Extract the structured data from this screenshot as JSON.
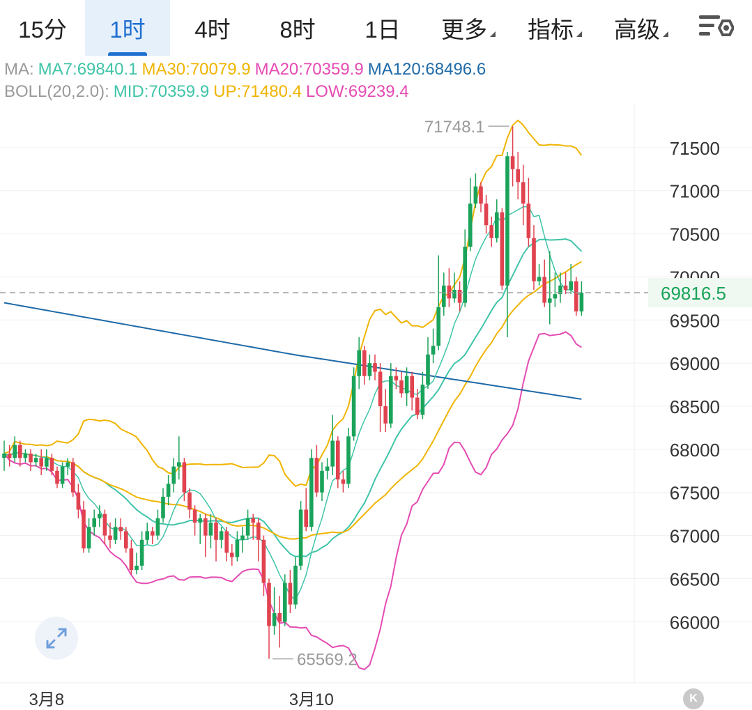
{
  "tabs": [
    {
      "label": "15分"
    },
    {
      "label": "1时",
      "active": true
    },
    {
      "label": "4时"
    },
    {
      "label": "8时"
    },
    {
      "label": "1日"
    },
    {
      "label": "更多",
      "caret": true
    },
    {
      "label": "指标",
      "caret": true
    },
    {
      "label": "高级",
      "caret": true
    }
  ],
  "settings_icon": "chart-settings-icon",
  "legend": {
    "ma_prefix": "MA:",
    "ma7": "MA7:69840.1",
    "ma30": "MA30:70079.9",
    "ma20": "MA20:70359.9",
    "ma120": "MA120:68496.6",
    "boll_prefix": "BOLL(20,2.0):",
    "mid": "MID:70359.9",
    "up": "UP:71480.4",
    "low": "LOW:69239.4"
  },
  "colors": {
    "up_candle": "#1aa35a",
    "down_candle": "#e0434f",
    "ma7": "#3fc4a8",
    "ma30": "#f0b400",
    "ma20": "#e54bb3",
    "ma120": "#1f6aa8",
    "boll_mid": "#3fc4a8",
    "boll_up": "#f0b400",
    "boll_low": "#e54bb3",
    "accent": "#1f6fd1",
    "price_tag": "#1aa35a"
  },
  "current_price": "69816.5",
  "high_label": "71748.1",
  "low_label": "65569.2",
  "chart_data": {
    "type": "candlestick",
    "y_ticks": [
      71500,
      71000,
      70500,
      70000,
      69500,
      69000,
      68500,
      68000,
      67500,
      67000,
      66500,
      66000
    ],
    "y_tick_labels": [
      "71500",
      "71000",
      "70500",
      "70000",
      "69500",
      "69000",
      "68500",
      "68000",
      "67500",
      "67000",
      "66500",
      "66000"
    ],
    "ylim": [
      65380,
      72000
    ],
    "x_labels": [
      {
        "text": "3月8",
        "index": 8
      },
      {
        "text": "3月10",
        "index": 58
      }
    ],
    "candles": [
      [
        67900,
        67950,
        67750,
        68100
      ],
      [
        67950,
        67900,
        67800,
        68050
      ],
      [
        67900,
        68050,
        67850,
        68150
      ],
      [
        68050,
        67900,
        67800,
        68100
      ],
      [
        67900,
        67950,
        67850,
        68000
      ],
      [
        67950,
        67850,
        67750,
        68000
      ],
      [
        67850,
        67900,
        67800,
        67950
      ],
      [
        67900,
        67800,
        67700,
        68000
      ],
      [
        67800,
        67900,
        67750,
        68000
      ],
      [
        67900,
        67750,
        67700,
        67950
      ],
      [
        67750,
        67600,
        67550,
        67800
      ],
      [
        67600,
        67800,
        67550,
        67850
      ],
      [
        67800,
        67850,
        67700,
        67900
      ],
      [
        67850,
        67500,
        67450,
        67900
      ],
      [
        67500,
        67300,
        67200,
        67600
      ],
      [
        67300,
        66850,
        66800,
        67400
      ],
      [
        66850,
        67100,
        66800,
        67200
      ],
      [
        67100,
        67200,
        67000,
        67300
      ],
      [
        67200,
        67250,
        67100,
        67350
      ],
      [
        67250,
        67000,
        66900,
        67300
      ],
      [
        67000,
        66950,
        66850,
        67150
      ],
      [
        66950,
        67100,
        66900,
        67200
      ],
      [
        67100,
        67050,
        66950,
        67200
      ],
      [
        67050,
        66850,
        66800,
        67100
      ],
      [
        66850,
        66600,
        66550,
        66950
      ],
      [
        66600,
        66650,
        66550,
        66800
      ],
      [
        66650,
        66950,
        66600,
        67050
      ],
      [
        66950,
        67050,
        66900,
        67150
      ],
      [
        67050,
        67000,
        66900,
        67100
      ],
      [
        67000,
        67200,
        66950,
        67300
      ],
      [
        67200,
        67450,
        67150,
        67550
      ],
      [
        67450,
        67600,
        67350,
        67700
      ],
      [
        67600,
        67800,
        67500,
        67900
      ],
      [
        67800,
        67850,
        67650,
        68150
      ],
      [
        67850,
        67500,
        67400,
        67900
      ],
      [
        67500,
        67300,
        67200,
        67550
      ],
      [
        67300,
        67150,
        67000,
        67350
      ],
      [
        67150,
        67200,
        66900,
        67250
      ],
      [
        67200,
        67000,
        66750,
        67250
      ],
      [
        67000,
        67150,
        66850,
        67250
      ],
      [
        67150,
        66950,
        66700,
        67200
      ],
      [
        66950,
        67050,
        66850,
        67100
      ],
      [
        67050,
        66800,
        66700,
        67100
      ],
      [
        66800,
        66750,
        66650,
        66900
      ],
      [
        66750,
        66950,
        66700,
        67050
      ],
      [
        66950,
        67000,
        66800,
        67100
      ],
      [
        67000,
        67200,
        66950,
        67300
      ],
      [
        67200,
        67150,
        66950,
        67250
      ],
      [
        67150,
        66950,
        66700,
        67200
      ],
      [
        66950,
        66450,
        66300,
        67000
      ],
      [
        66450,
        65950,
        65569.2,
        66500
      ],
      [
        65950,
        66100,
        65850,
        66400
      ],
      [
        66100,
        66000,
        65700,
        66300
      ],
      [
        66000,
        66450,
        65950,
        66550
      ],
      [
        66450,
        66200,
        66100,
        66600
      ],
      [
        66200,
        66650,
        66150,
        66750
      ],
      [
        66650,
        67300,
        66600,
        67400
      ],
      [
        67300,
        67100,
        67050,
        67550
      ],
      [
        67100,
        67900,
        67050,
        68000
      ],
      [
        67900,
        67500,
        67450,
        68050
      ],
      [
        67500,
        67750,
        67400,
        67850
      ],
      [
        67750,
        67800,
        67650,
        67900
      ],
      [
        67800,
        68100,
        67700,
        68400
      ],
      [
        68100,
        67650,
        67550,
        68150
      ],
      [
        67650,
        67600,
        67500,
        67750
      ],
      [
        67600,
        68150,
        67550,
        68250
      ],
      [
        68150,
        68850,
        68100,
        68950
      ],
      [
        68850,
        69150,
        68700,
        69300
      ],
      [
        69150,
        68850,
        68750,
        69200
      ],
      [
        68850,
        69000,
        68800,
        69100
      ],
      [
        69000,
        68900,
        68800,
        69100
      ],
      [
        68900,
        68500,
        68200,
        69000
      ],
      [
        68500,
        68300,
        68200,
        68700
      ],
      [
        68300,
        68850,
        68250,
        69000
      ],
      [
        68850,
        68800,
        68700,
        68950
      ],
      [
        68800,
        68650,
        68600,
        68900
      ],
      [
        68650,
        68850,
        68500,
        68950
      ],
      [
        68850,
        68600,
        68450,
        68900
      ],
      [
        68600,
        68400,
        68350,
        68700
      ],
      [
        68400,
        68750,
        68350,
        68900
      ],
      [
        68750,
        69100,
        68700,
        69300
      ],
      [
        69100,
        69200,
        69000,
        69400
      ],
      [
        69200,
        69650,
        69150,
        70250
      ],
      [
        69650,
        69900,
        69550,
        70050
      ],
      [
        69900,
        69750,
        69650,
        70100
      ],
      [
        69750,
        69850,
        69700,
        70050
      ],
      [
        69850,
        69700,
        69600,
        69950
      ],
      [
        69700,
        70350,
        69650,
        70550
      ],
      [
        70350,
        70850,
        70300,
        71150
      ],
      [
        70850,
        71050,
        70800,
        71200
      ],
      [
        71050,
        70850,
        70750,
        71100
      ],
      [
        70850,
        70600,
        70500,
        70950
      ],
      [
        70600,
        70450,
        70350,
        70700
      ],
      [
        70450,
        70750,
        70400,
        70900
      ],
      [
        70750,
        69900,
        69850,
        70800
      ],
      [
        69900,
        71400,
        69300,
        71450
      ],
      [
        71400,
        71250,
        71050,
        71748.1
      ],
      [
        71250,
        71100,
        70900,
        71450
      ],
      [
        71100,
        70850,
        70600,
        71300
      ],
      [
        70850,
        70450,
        70350,
        71150
      ],
      [
        70450,
        69950,
        69850,
        70600
      ],
      [
        69950,
        70000,
        69900,
        70150
      ],
      [
        70000,
        69700,
        69650,
        70200
      ],
      [
        69700,
        69750,
        69450,
        70300
      ],
      [
        69750,
        69800,
        69650,
        70050
      ],
      [
        69800,
        69900,
        69700,
        70050
      ],
      [
        69900,
        69850,
        69800,
        70050
      ],
      [
        69850,
        69950,
        69800,
        70150
      ],
      [
        69950,
        69600,
        69550,
        70000
      ],
      [
        69600,
        69816.5,
        69550,
        69950
      ]
    ]
  }
}
